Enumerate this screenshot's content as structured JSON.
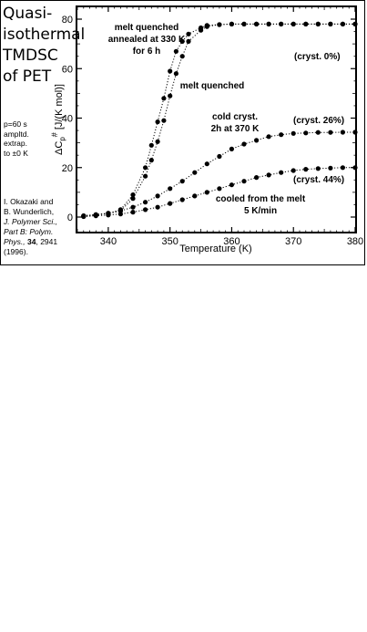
{
  "side": {
    "title_lines": [
      "Quasi-",
      "isothermal",
      "TMDSC",
      "of PET"
    ],
    "params_lines": [
      "p=60 s",
      "ampltd.",
      "extrap.",
      "to ±0 K"
    ],
    "ref": {
      "line1": "I. Okazaki and",
      "line2": "B. Wunderlich,",
      "journal1": "J. Polymer Sci.,",
      "journal2": "Part B: Polym.",
      "journal3": "Phys.,",
      "volume": "34",
      "pages": ", 2941",
      "year": "(1996)."
    }
  },
  "chart_data": {
    "type": "scatter",
    "title": "",
    "xlabel": "Temperature  (K)",
    "ylabel_main": "ΔC",
    "ylabel_sub": "p",
    "ylabel_sup": "#",
    "ylabel_unit": "[J/(K mol)]",
    "xlim": [
      335,
      380
    ],
    "ylim": [
      0,
      80
    ],
    "x_ticks": [
      340,
      350,
      360,
      370,
      380
    ],
    "y_ticks": [
      0,
      20,
      40,
      60,
      80
    ],
    "grid": false,
    "annotations": [
      {
        "id": "melt-annealed",
        "lines": [
          "melt quenched",
          "annealed at 330 K",
          "for 6 h"
        ]
      },
      {
        "id": "melt-quenched",
        "lines": [
          "melt quenched"
        ]
      },
      {
        "id": "cryst0",
        "lines": [
          "(cryst. 0%)"
        ]
      },
      {
        "id": "cold-cryst",
        "lines": [
          "cold cryst.",
          "2h at 370 K"
        ]
      },
      {
        "id": "cryst26",
        "lines": [
          "(cryst. 26%)"
        ]
      },
      {
        "id": "cryst44",
        "lines": [
          "(cryst. 44%)"
        ]
      },
      {
        "id": "cooled",
        "lines": [
          "cooled from the melt",
          "5 K/min"
        ]
      }
    ],
    "series": [
      {
        "id": "melt-quenched-annealed",
        "x": [
          336,
          338,
          340,
          342,
          344,
          346,
          347,
          348,
          349,
          350,
          351,
          352,
          353,
          355,
          356,
          358,
          360,
          362,
          364,
          366,
          368,
          370,
          372,
          374,
          376,
          378,
          380
        ],
        "y": [
          0.5,
          1,
          1.5,
          3,
          9,
          20,
          29,
          38.5,
          48,
          59,
          67,
          71,
          74,
          76.5,
          77.5,
          77.8,
          78,
          78,
          78,
          78,
          78,
          78,
          78,
          78,
          78,
          78,
          78
        ]
      },
      {
        "id": "melt-quenched",
        "x": [
          336,
          338,
          340,
          342,
          344,
          346,
          347,
          348,
          349,
          350,
          351,
          352,
          353,
          355,
          356,
          358,
          360,
          362,
          364,
          366,
          368,
          370,
          372,
          374,
          376,
          378,
          380
        ],
        "y": [
          0.5,
          1,
          1.5,
          2.5,
          7.5,
          16.5,
          23,
          30.5,
          39,
          49,
          58,
          65,
          71,
          75.5,
          77,
          77.8,
          78,
          78,
          78,
          78,
          78,
          78,
          78,
          78,
          78,
          78,
          78
        ]
      },
      {
        "id": "cold-crystallized",
        "x": [
          336,
          338,
          340,
          342,
          344,
          346,
          348,
          350,
          352,
          354,
          356,
          358,
          360,
          362,
          364,
          366,
          368,
          370,
          372,
          374,
          376,
          378,
          380
        ],
        "y": [
          0.3,
          0.8,
          1.5,
          2.5,
          4,
          6,
          8.5,
          11.5,
          14.5,
          18,
          21.5,
          24.5,
          27.5,
          29.5,
          31,
          32.5,
          33.3,
          33.8,
          34,
          34.2,
          34.2,
          34.3,
          34.3
        ]
      },
      {
        "id": "cooled-from-melt",
        "x": [
          336,
          338,
          340,
          342,
          344,
          346,
          348,
          350,
          352,
          354,
          356,
          358,
          360,
          362,
          364,
          366,
          368,
          370,
          372,
          374,
          376,
          378,
          380
        ],
        "y": [
          0.2,
          0.5,
          0.8,
          1.2,
          2,
          3,
          4,
          5.5,
          7,
          8.5,
          10,
          11.5,
          13,
          14.5,
          16,
          17,
          18,
          18.8,
          19.3,
          19.6,
          19.8,
          20,
          20
        ]
      }
    ]
  }
}
